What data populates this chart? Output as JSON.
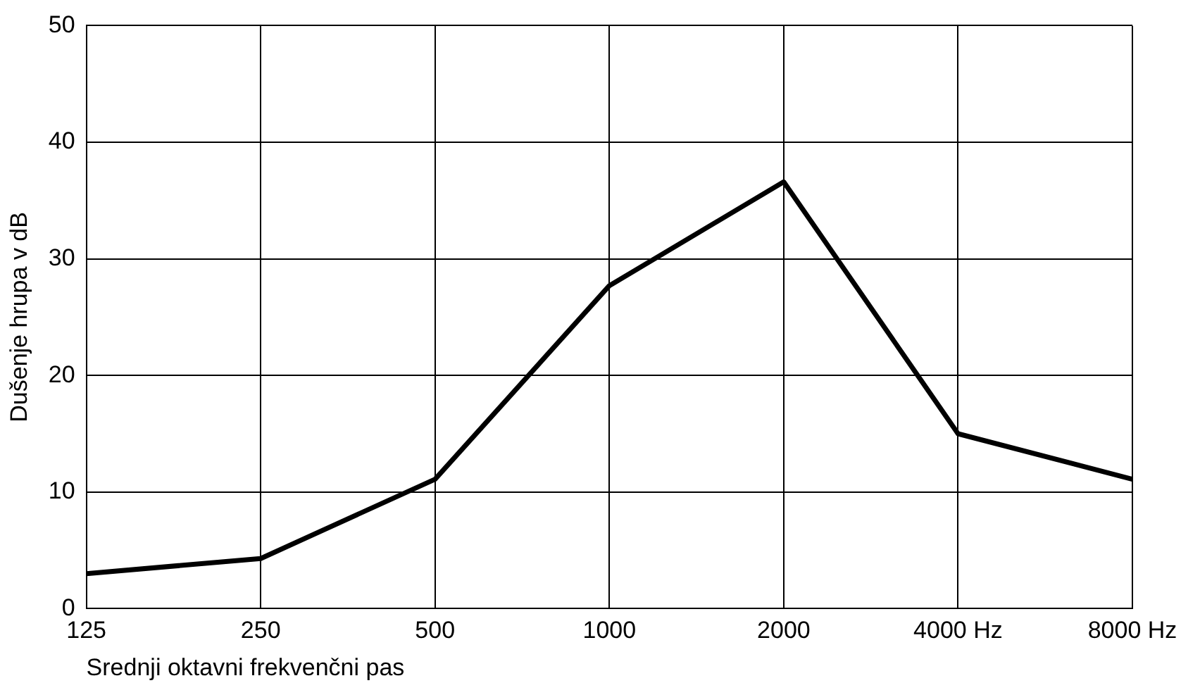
{
  "chart_data": {
    "type": "line",
    "xlabel": "Srednji oktavni frekvenčni pas",
    "ylabel": "Dušenje hrupa v dB",
    "categories": [
      "125",
      "250",
      "500",
      "1000",
      "2000",
      "4000 Hz",
      "8000 Hz"
    ],
    "series": [
      {
        "color": "#000000",
        "values": [
          3.0,
          4.3,
          11.1,
          27.7,
          36.6,
          15.0,
          11.1
        ]
      }
    ],
    "ylim": [
      0,
      50
    ],
    "yticks": [
      0,
      10,
      20,
      30,
      40,
      50
    ],
    "grid": true,
    "legend": false,
    "marker": "none",
    "line_style": "solid"
  }
}
